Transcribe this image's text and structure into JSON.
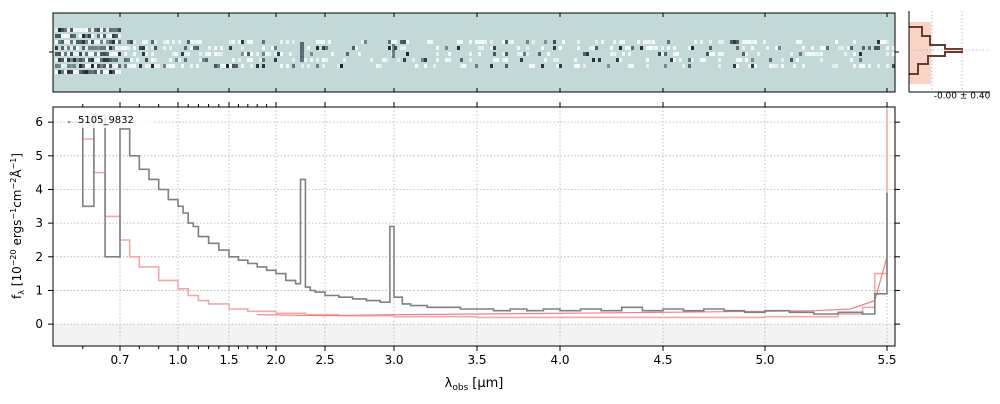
{
  "chart_data": {
    "type": "line",
    "object_label": "5105_9832",
    "xlabel_main": "λ",
    "xlabel_sub": "obs",
    "xlabel_unit": "[μm]",
    "ylabel": "f_λ [10^-20 ergs^-1cm^-2Å^-1]",
    "xlim": [
      0.52,
      5.53
    ],
    "ylim": [
      -0.65,
      6.45
    ],
    "x_scale": "sqrt-like (ticks spaced nonlinearly)",
    "x_ticks": [
      0.7,
      1.0,
      1.5,
      2.0,
      2.5,
      3.0,
      3.5,
      4.0,
      4.5,
      5.0,
      5.5
    ],
    "x_tick_labels": [
      "0.7",
      "1.0",
      "1.5",
      "2.0",
      "2.5",
      "3.0",
      "3.5",
      "4.0",
      "4.5",
      "5.0",
      "5.5"
    ],
    "y_ticks": [
      0,
      1,
      2,
      3,
      4,
      5,
      6
    ],
    "y_tick_labels": [
      "0",
      "1",
      "2",
      "3",
      "4",
      "5",
      "6"
    ],
    "grid": true,
    "colors": {
      "spectrum": "#808080",
      "error": "#f4a8a8",
      "model": "#f08080",
      "grid": "#b0b0b0",
      "hist_fill": "#f8c8b8",
      "hist_line": "#6b3a2a",
      "image_bg": "#c3d9d8"
    },
    "series": [
      {
        "name": "",
        "style": "steps",
        "x": [
          0.56,
          0.6,
          0.63,
          0.66,
          0.7,
          0.75,
          0.8,
          0.85,
          0.9,
          0.95,
          1.0,
          1.05,
          1.1,
          1.15,
          1.2,
          1.3,
          1.4,
          1.5,
          1.6,
          1.7,
          1.8,
          1.9,
          2.0,
          2.1,
          2.2,
          2.25,
          2.3,
          2.35,
          2.4,
          2.5,
          2.6,
          2.7,
          2.8,
          2.9,
          2.97,
          3.0,
          3.05,
          3.1,
          3.2,
          3.3,
          3.4,
          3.5,
          3.6,
          3.7,
          3.8,
          3.9,
          4.0,
          4.1,
          4.2,
          4.3,
          4.4,
          4.5,
          4.6,
          4.7,
          4.8,
          4.9,
          5.0,
          5.1,
          5.2,
          5.3,
          5.4,
          5.45,
          5.5
        ],
        "y": [
          6.0,
          3.5,
          6.2,
          2.0,
          5.8,
          5.0,
          4.6,
          4.3,
          4.0,
          3.7,
          3.5,
          3.3,
          3.0,
          2.9,
          2.6,
          2.4,
          2.2,
          2.0,
          1.9,
          1.8,
          1.7,
          1.6,
          1.5,
          1.3,
          1.2,
          4.3,
          1.1,
          1.0,
          0.95,
          0.85,
          0.8,
          0.75,
          0.7,
          0.65,
          2.9,
          0.8,
          0.6,
          0.55,
          0.5,
          0.5,
          0.45,
          0.45,
          0.4,
          0.45,
          0.4,
          0.45,
          0.4,
          0.45,
          0.4,
          0.5,
          0.4,
          0.45,
          0.4,
          0.45,
          0.4,
          0.35,
          0.4,
          0.35,
          0.3,
          0.35,
          0.3,
          0.9,
          3.9
        ]
      },
      {
        "name": "",
        "style": "steps",
        "x": [
          0.56,
          0.6,
          0.63,
          0.66,
          0.7,
          0.75,
          0.8,
          0.9,
          1.0,
          1.1,
          1.2,
          1.3,
          1.5,
          1.7,
          2.0,
          2.3,
          2.6,
          3.0,
          3.5,
          4.0,
          4.5,
          5.0,
          5.3,
          5.4,
          5.45,
          5.5
        ],
        "y": [
          6.0,
          5.5,
          4.5,
          3.2,
          2.5,
          2.0,
          1.7,
          1.3,
          1.05,
          0.85,
          0.7,
          0.6,
          0.45,
          0.38,
          0.32,
          0.28,
          0.25,
          0.22,
          0.2,
          0.2,
          0.2,
          0.22,
          0.3,
          0.5,
          1.5,
          6.4
        ]
      },
      {
        "name": "",
        "style": "line",
        "x": [
          1.8,
          2.5,
          3.0,
          3.5,
          4.0,
          4.5,
          5.0,
          5.2,
          5.35,
          5.45,
          5.5
        ],
        "y": [
          0.28,
          0.25,
          0.28,
          0.3,
          0.32,
          0.35,
          0.38,
          0.4,
          0.45,
          0.7,
          2.0
        ]
      }
    ],
    "side_panel": {
      "label": "-0.00 ± 0.40",
      "type": "histogram"
    }
  }
}
